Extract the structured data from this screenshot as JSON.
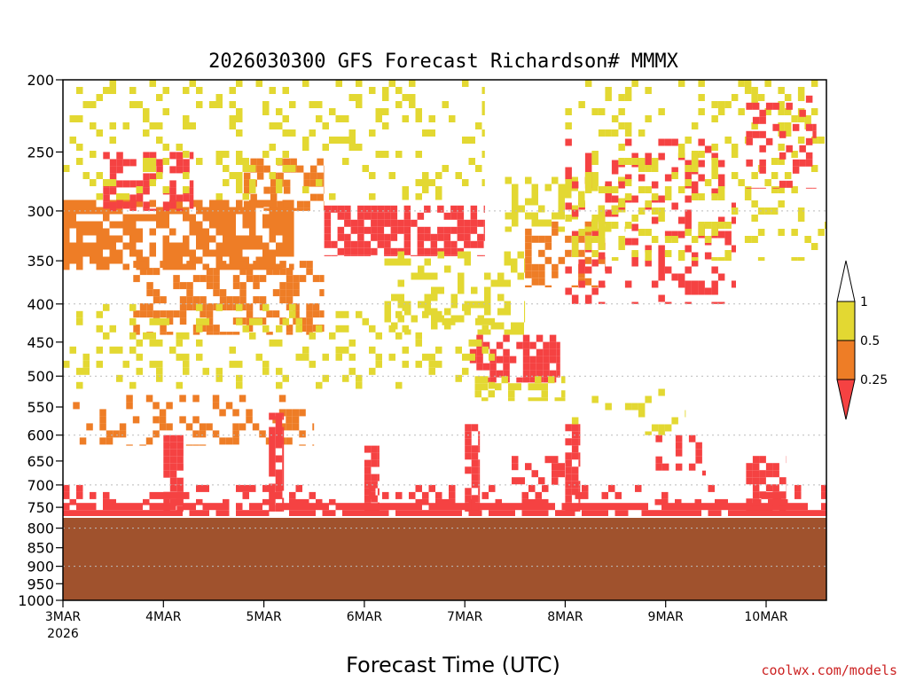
{
  "chart_data": {
    "type": "heatmap",
    "title": "2026030300 GFS Forecast Richardson# MMMX",
    "xlabel": "Forecast Time (UTC)",
    "ylabel": "",
    "credit": "coolwx.com/models",
    "y_scale": "log-pressure (inverted)",
    "ylim": [
      200,
      1000
    ],
    "y_ticks": [
      200,
      250,
      300,
      350,
      400,
      450,
      500,
      550,
      600,
      650,
      700,
      750,
      800,
      850,
      900,
      950,
      1000
    ],
    "y_gridlines": [
      300,
      400,
      500,
      600,
      700,
      800,
      900,
      1000
    ],
    "x_ticks": [
      {
        "label": "3MAR",
        "sublabel": "2026",
        "day": 0
      },
      {
        "label": "4MAR",
        "sublabel": "",
        "day": 1
      },
      {
        "label": "5MAR",
        "sublabel": "",
        "day": 2
      },
      {
        "label": "6MAR",
        "sublabel": "",
        "day": 3
      },
      {
        "label": "7MAR",
        "sublabel": "",
        "day": 4
      },
      {
        "label": "8MAR",
        "sublabel": "",
        "day": 5
      },
      {
        "label": "9MAR",
        "sublabel": "",
        "day": 6
      },
      {
        "label": "10MAR",
        "sublabel": "",
        "day": 7
      }
    ],
    "xlim_days": [
      0,
      7.6
    ],
    "legend": {
      "placement": "right",
      "levels": [
        "0.25",
        "0.5",
        "1"
      ],
      "bins": [
        {
          "range": "< 0.25",
          "color": "#f54242"
        },
        {
          "range": "0.25 - 0.5",
          "color": "#ee7d26"
        },
        {
          "range": "0.5 - 1",
          "color": "#e3d832"
        },
        {
          "range": "> 1",
          "color": "#ffffff"
        }
      ]
    },
    "ground": {
      "pressure_top": 775,
      "color": "#a0522d"
    },
    "regions": [
      {
        "day_start": 0.0,
        "day_end": 2.3,
        "p_top": 290,
        "p_bot": 360,
        "category": 1,
        "density": 0.72
      },
      {
        "day_start": 0.4,
        "day_end": 1.3,
        "p_top": 250,
        "p_bot": 300,
        "category": 0,
        "density": 0.5
      },
      {
        "day_start": 1.8,
        "day_end": 2.6,
        "p_top": 255,
        "p_bot": 300,
        "category": 1,
        "density": 0.55
      },
      {
        "day_start": 2.6,
        "day_end": 4.2,
        "p_top": 295,
        "p_bot": 345,
        "category": 0,
        "density": 0.72
      },
      {
        "day_start": 0.7,
        "day_end": 2.6,
        "p_top": 350,
        "p_bot": 440,
        "category": 1,
        "density": 0.45
      },
      {
        "day_start": 3.2,
        "day_end": 4.6,
        "p_top": 340,
        "p_bot": 440,
        "category": 2,
        "density": 0.38
      },
      {
        "day_start": 4.6,
        "day_end": 5.4,
        "p_top": 310,
        "p_bot": 380,
        "category": 1,
        "density": 0.35
      },
      {
        "day_start": 4.4,
        "day_end": 5.6,
        "p_top": 270,
        "p_bot": 320,
        "category": 2,
        "density": 0.4
      },
      {
        "day_start": 4.05,
        "day_end": 4.95,
        "p_top": 440,
        "p_bot": 510,
        "category": 0,
        "density": 0.65
      },
      {
        "day_start": 4.1,
        "day_end": 5.0,
        "p_top": 500,
        "p_bot": 540,
        "category": 2,
        "density": 0.35
      },
      {
        "day_start": 5.0,
        "day_end": 6.7,
        "p_top": 240,
        "p_bot": 400,
        "category": 0,
        "density": 0.22
      },
      {
        "day_start": 5.0,
        "day_end": 7.6,
        "p_top": 200,
        "p_bot": 350,
        "category": 2,
        "density": 0.2
      },
      {
        "day_start": 6.8,
        "day_end": 7.5,
        "p_top": 210,
        "p_bot": 280,
        "category": 0,
        "density": 0.3
      },
      {
        "day_start": 0.0,
        "day_end": 4.2,
        "p_top": 200,
        "p_bot": 290,
        "category": 2,
        "density": 0.18
      },
      {
        "day_start": 0.0,
        "day_end": 4.3,
        "p_top": 400,
        "p_bot": 520,
        "category": 2,
        "density": 0.18
      },
      {
        "day_start": 0.1,
        "day_end": 2.5,
        "p_top": 530,
        "p_bot": 620,
        "category": 1,
        "density": 0.28
      },
      {
        "day_start": 0.0,
        "day_end": 7.6,
        "p_top": 740,
        "p_bot": 775,
        "category": 0,
        "density": 0.85
      },
      {
        "day_start": 0.0,
        "day_end": 7.6,
        "p_top": 700,
        "p_bot": 745,
        "category": 0,
        "density": 0.25
      },
      {
        "day_start": 2.05,
        "day_end": 2.2,
        "p_top": 560,
        "p_bot": 760,
        "category": 0,
        "density": 0.8
      },
      {
        "day_start": 1.0,
        "day_end": 1.2,
        "p_top": 600,
        "p_bot": 760,
        "category": 0,
        "density": 0.75
      },
      {
        "day_start": 3.0,
        "day_end": 3.15,
        "p_top": 620,
        "p_bot": 760,
        "category": 0,
        "density": 0.75
      },
      {
        "day_start": 4.0,
        "day_end": 4.15,
        "p_top": 580,
        "p_bot": 760,
        "category": 0,
        "density": 0.8
      },
      {
        "day_start": 5.0,
        "day_end": 5.15,
        "p_top": 580,
        "p_bot": 760,
        "category": 0,
        "density": 0.75
      },
      {
        "day_start": 6.8,
        "day_end": 7.2,
        "p_top": 640,
        "p_bot": 760,
        "category": 0,
        "density": 0.55
      },
      {
        "day_start": 4.4,
        "day_end": 5.0,
        "p_top": 640,
        "p_bot": 700,
        "category": 0,
        "density": 0.35
      },
      {
        "day_start": 5.9,
        "day_end": 6.4,
        "p_top": 600,
        "p_bot": 680,
        "category": 0,
        "density": 0.3
      },
      {
        "day_start": 5.0,
        "day_end": 6.2,
        "p_top": 520,
        "p_bot": 600,
        "category": 2,
        "density": 0.12
      }
    ]
  }
}
